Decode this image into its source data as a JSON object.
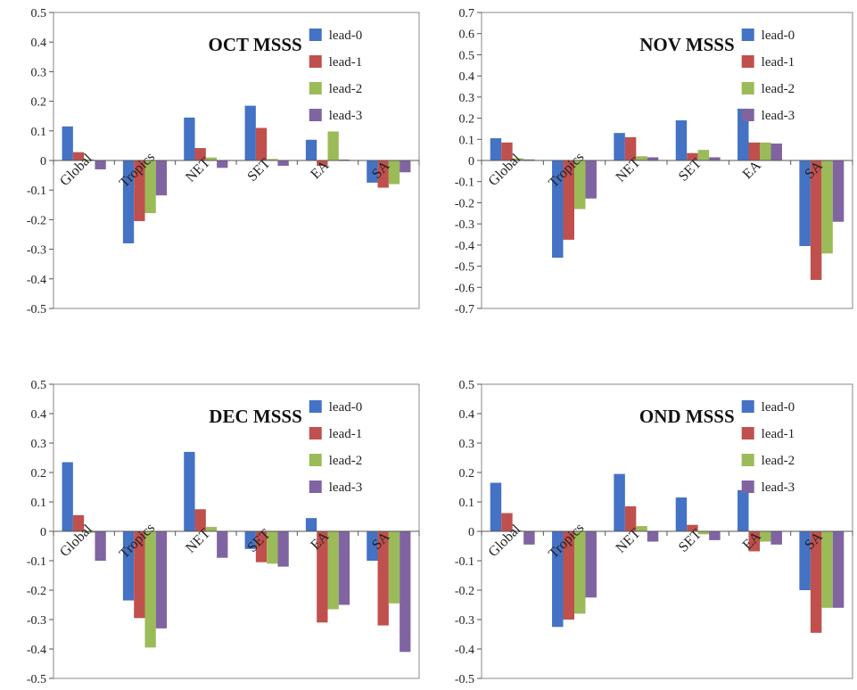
{
  "chart_data": [
    {
      "type": "bar",
      "title": "OCT MSSS",
      "categories": [
        "Global",
        "Tropics",
        "NET",
        "SET",
        "EA",
        "SA"
      ],
      "ylim": [
        -0.5,
        0.5
      ],
      "yticks": [
        "0.5",
        "0.4",
        "0.3",
        "0.2",
        "0.1",
        "0",
        "-0.1",
        "-0.2",
        "-0.3",
        "-0.4",
        "-0.5"
      ],
      "legend": "top-right",
      "grid": false,
      "series": [
        {
          "name": "lead-0",
          "color": "#4472C4",
          "values": [
            0.115,
            -0.28,
            0.145,
            0.185,
            0.07,
            -0.075
          ]
        },
        {
          "name": "lead-1",
          "color": "#C0504D",
          "values": [
            0.028,
            -0.205,
            0.042,
            0.11,
            -0.018,
            -0.092
          ]
        },
        {
          "name": "lead-2",
          "color": "#9BBB59",
          "values": [
            0.003,
            -0.178,
            0.01,
            0.005,
            0.098,
            -0.08
          ]
        },
        {
          "name": "lead-3",
          "color": "#8064A2",
          "values": [
            -0.03,
            -0.118,
            -0.025,
            -0.018,
            0.003,
            -0.04
          ]
        }
      ]
    },
    {
      "type": "bar",
      "title": "NOV MSSS",
      "categories": [
        "Global",
        "Tropics",
        "NET",
        "SET",
        "EA",
        "SA"
      ],
      "ylim": [
        -0.7,
        0.7
      ],
      "yticks": [
        "0.7",
        "0.6",
        "0.5",
        "0.4",
        "0.3",
        "0.2",
        "0.1",
        "0",
        "-0.1",
        "-0.2",
        "-0.3",
        "-0.4",
        "-0.5",
        "-0.6",
        "-0.7"
      ],
      "legend": "top-right",
      "grid": false,
      "series": [
        {
          "name": "lead-0",
          "color": "#4472C4",
          "values": [
            0.105,
            -0.46,
            0.13,
            0.19,
            0.245,
            -0.405
          ]
        },
        {
          "name": "lead-1",
          "color": "#C0504D",
          "values": [
            0.085,
            -0.375,
            0.11,
            0.035,
            0.085,
            -0.565
          ]
        },
        {
          "name": "lead-2",
          "color": "#9BBB59",
          "values": [
            0.01,
            -0.23,
            0.02,
            0.05,
            0.085,
            -0.44
          ]
        },
        {
          "name": "lead-3",
          "color": "#8064A2",
          "values": [
            0.005,
            -0.18,
            0.015,
            0.015,
            0.08,
            -0.29
          ]
        }
      ]
    },
    {
      "type": "bar",
      "title": "DEC MSSS",
      "categories": [
        "Global",
        "Tropics",
        "NET",
        "SET",
        "EA",
        "SA"
      ],
      "ylim": [
        -0.5,
        0.5
      ],
      "yticks": [
        "0.5",
        "0.4",
        "0.3",
        "0.2",
        "0.1",
        "0",
        "-0.1",
        "-0.2",
        "-0.3",
        "-0.4",
        "-0.5"
      ],
      "legend": "top-right",
      "grid": false,
      "series": [
        {
          "name": "lead-0",
          "color": "#4472C4",
          "values": [
            0.235,
            -0.235,
            0.27,
            -0.06,
            0.045,
            -0.1
          ]
        },
        {
          "name": "lead-1",
          "color": "#C0504D",
          "values": [
            0.055,
            -0.295,
            0.075,
            -0.105,
            -0.31,
            -0.32
          ]
        },
        {
          "name": "lead-2",
          "color": "#9BBB59",
          "values": [
            -0.005,
            -0.395,
            0.015,
            -0.11,
            -0.265,
            -0.245
          ]
        },
        {
          "name": "lead-3",
          "color": "#8064A2",
          "values": [
            -0.1,
            -0.33,
            -0.09,
            -0.12,
            -0.25,
            -0.41
          ]
        }
      ]
    },
    {
      "type": "bar",
      "title": "OND MSSS",
      "categories": [
        "Global",
        "Tropics",
        "NET",
        "SET",
        "EA",
        "SA"
      ],
      "ylim": [
        -0.5,
        0.5
      ],
      "yticks": [
        "0.5",
        "0.4",
        "0.3",
        "0.2",
        "0.1",
        "0",
        "-0.1",
        "-0.2",
        "-0.3",
        "-0.4",
        "-0.5"
      ],
      "legend": "top-right",
      "grid": false,
      "series": [
        {
          "name": "lead-0",
          "color": "#4472C4",
          "values": [
            0.165,
            -0.325,
            0.195,
            0.115,
            0.14,
            -0.2
          ]
        },
        {
          "name": "lead-1",
          "color": "#C0504D",
          "values": [
            0.062,
            -0.3,
            0.085,
            0.022,
            -0.068,
            -0.345
          ]
        },
        {
          "name": "lead-2",
          "color": "#9BBB59",
          "values": [
            0.002,
            -0.28,
            0.018,
            -0.01,
            -0.035,
            -0.26
          ]
        },
        {
          "name": "lead-3",
          "color": "#8064A2",
          "values": [
            -0.045,
            -0.225,
            -0.035,
            -0.03,
            -0.045,
            -0.26
          ]
        }
      ]
    }
  ]
}
